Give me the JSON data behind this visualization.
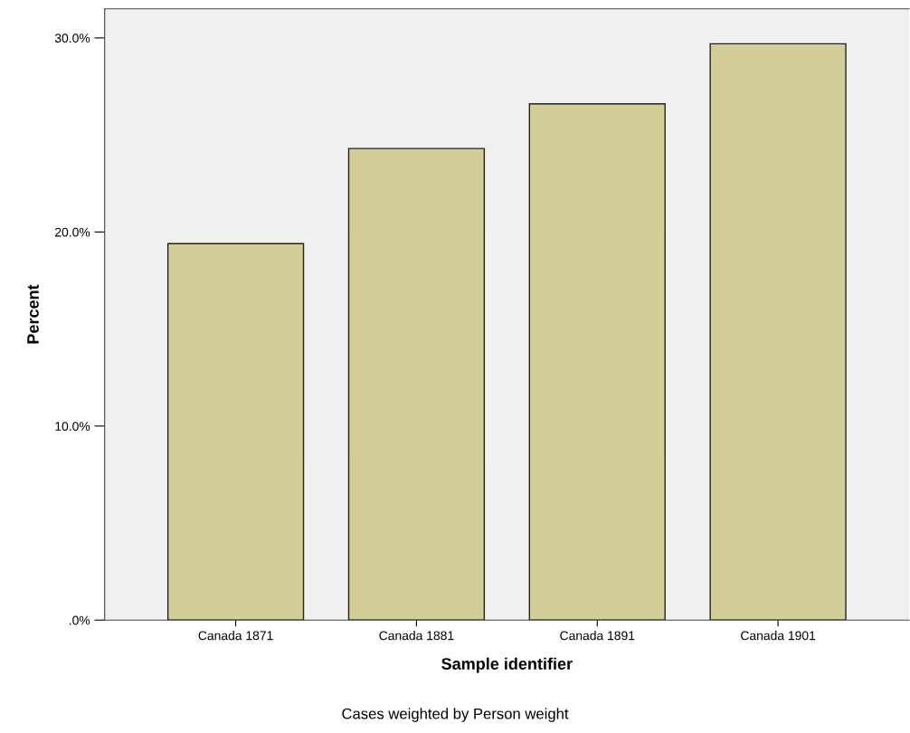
{
  "chart_data": {
    "type": "bar",
    "xlabel": "Sample identifier",
    "ylabel": "Percent",
    "categories": [
      "Canada 1871",
      "Canada 1881",
      "Canada 1891",
      "Canada 1901"
    ],
    "values": [
      19.4,
      24.3,
      26.6,
      29.7
    ],
    "color": "#d3ce97",
    "ylim": [
      0,
      31.5
    ],
    "yticks": [
      {
        "value": 0,
        "label": ".0%"
      },
      {
        "value": 10,
        "label": "10.0%"
      },
      {
        "value": 20,
        "label": "20.0%"
      },
      {
        "value": 30,
        "label": "30.0%"
      }
    ],
    "grid": false,
    "annotations": [
      "Cases weighted by Person weight"
    ]
  }
}
